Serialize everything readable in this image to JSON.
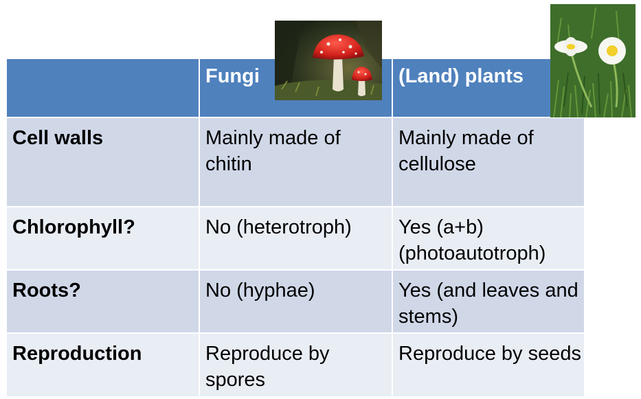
{
  "table": {
    "headers": [
      "",
      "Fungi",
      "(Land) plants"
    ],
    "rows": [
      {
        "label": "Cell walls",
        "fungi": "Mainly made of chitin",
        "plants": "Mainly made of cellulose"
      },
      {
        "label": "Chlorophyll?",
        "fungi": "No (heterotroph)",
        "plants": "Yes (a+b) (photoautotroph)"
      },
      {
        "label": "Roots?",
        "fungi": "No (hyphae)",
        "plants": "Yes (and leaves and stems)"
      },
      {
        "label": "Reproduction",
        "fungi": "Reproduce by spores",
        "plants": "Reproduce by seeds"
      }
    ]
  },
  "images": {
    "mushroom": "fly-agaric-mushroom-photo",
    "daisy": "daisy-flowers-photo"
  },
  "colors": {
    "header": "#4f81bd",
    "row_dark": "#d0d8e8",
    "row_light": "#e9edf4"
  }
}
